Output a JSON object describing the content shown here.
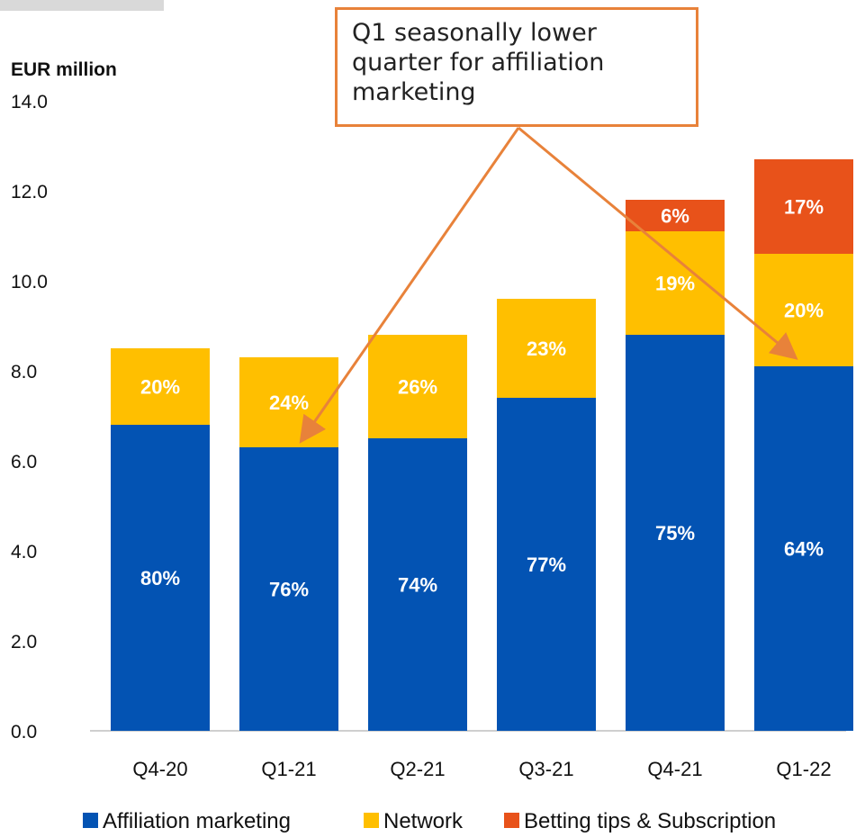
{
  "colors": {
    "affiliation": "#0353b3",
    "network": "#ffbf00",
    "betting": "#e8521a",
    "callout_border": "#e8823a",
    "axis": "#bfbfbf"
  },
  "callout": {
    "text": "Q1 seasonally lower quarter for affiliation marketing"
  },
  "chart_data": {
    "type": "bar",
    "stacked": true,
    "ylabel": "EUR million",
    "ylim": [
      0,
      14
    ],
    "yticks": [
      "0.0",
      "2.0",
      "4.0",
      "6.0",
      "8.0",
      "10.0",
      "12.0",
      "14.0"
    ],
    "categories": [
      "Q4-20",
      "Q1-21",
      "Q2-21",
      "Q3-21",
      "Q4-21",
      "Q1-22"
    ],
    "series": [
      {
        "name": "Affiliation marketing",
        "color": "#0353b3",
        "values": [
          6.8,
          6.3,
          6.5,
          7.4,
          8.8,
          8.1
        ],
        "labels": [
          "80%",
          "76%",
          "74%",
          "77%",
          "75%",
          "64%"
        ]
      },
      {
        "name": "Network",
        "color": "#ffbf00",
        "values": [
          1.7,
          2.0,
          2.3,
          2.2,
          2.3,
          2.5
        ],
        "labels": [
          "20%",
          "24%",
          "26%",
          "23%",
          "19%",
          "20%"
        ]
      },
      {
        "name": "Betting tips & Subscription",
        "color": "#e8521a",
        "values": [
          0,
          0,
          0,
          0,
          0.7,
          2.1
        ],
        "labels": [
          "",
          "",
          "",
          "",
          "6%",
          "17%"
        ]
      }
    ],
    "legend_position": "bottom"
  }
}
